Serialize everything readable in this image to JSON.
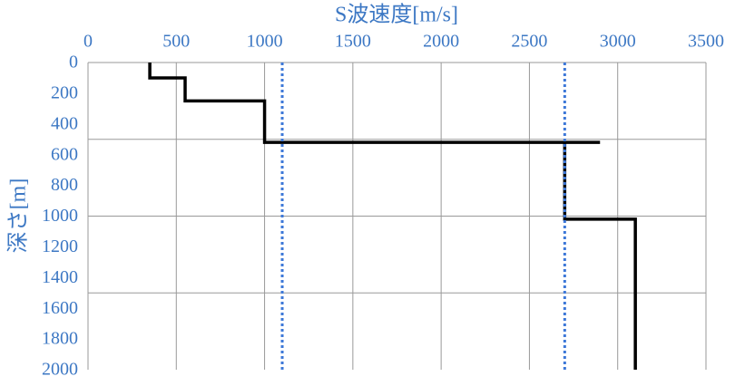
{
  "chart_data": {
    "type": "line",
    "xlabel": "S波速度[m/s]",
    "ylabel": "深さ[m]",
    "xlim": [
      0,
      3500
    ],
    "xticks": [
      0,
      500,
      1000,
      1500,
      2000,
      2500,
      3000,
      3500
    ],
    "ylim": [
      0,
      2000
    ],
    "yticks": [
      0,
      200,
      400,
      600,
      800,
      1000,
      1200,
      1400,
      1600,
      1800,
      2000
    ],
    "y_inverted": true,
    "x_axis_position": "top",
    "grid": true,
    "ygrid": [
      500,
      1000,
      1500
    ],
    "axis_label_color": "#3d78c4",
    "series": [
      {
        "color": "#000000",
        "dashed": false,
        "x": [
          350,
          350,
          550,
          550,
          1000,
          1000,
          2900,
          2700,
          2700,
          3100,
          3100
        ],
        "values": [
          0,
          100,
          100,
          250,
          250,
          520,
          520,
          520,
          1020,
          1020,
          2000
        ]
      },
      {
        "color": "#3d78d8",
        "dashed": true,
        "x": [
          1100,
          1100
        ],
        "values": [
          0,
          2000
        ]
      },
      {
        "color": "#3d78d8",
        "dashed": true,
        "x": [
          2700,
          2700
        ],
        "values": [
          0,
          2000
        ]
      }
    ]
  }
}
